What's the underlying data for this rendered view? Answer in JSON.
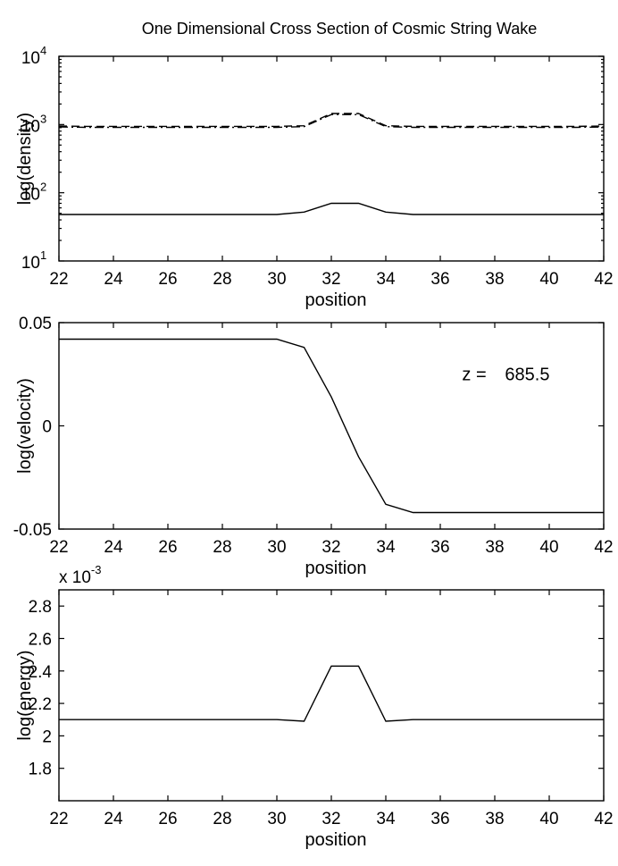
{
  "figure": {
    "title": "One Dimensional Cross Section of Cosmic String Wake"
  },
  "chart_data": [
    {
      "type": "line",
      "xlabel": "position",
      "ylabel": "log(density)",
      "yscale": "log",
      "xlim": [
        22,
        42
      ],
      "ylim": [
        10,
        10000
      ],
      "xticks": [
        "22",
        "24",
        "26",
        "28",
        "30",
        "32",
        "34",
        "36",
        "38",
        "40",
        "42"
      ],
      "yticks": [
        {
          "value": 10,
          "base": "10",
          "exp": "1"
        },
        {
          "value": 100,
          "base": "10",
          "exp": "2"
        },
        {
          "value": 1000,
          "base": "10",
          "exp": "3"
        },
        {
          "value": 10000,
          "base": "10",
          "exp": "4"
        }
      ],
      "series": [
        {
          "style": "solid",
          "color": "#000000",
          "x": [
            22,
            23,
            24,
            25,
            26,
            27,
            28,
            29,
            30,
            31,
            32,
            33,
            34,
            35,
            36,
            37,
            38,
            39,
            40,
            41,
            42
          ],
          "y": [
            48,
            48,
            48,
            48,
            48,
            48,
            48,
            48,
            48,
            52,
            70,
            70,
            52,
            48,
            48,
            48,
            48,
            48,
            48,
            48,
            48
          ]
        },
        {
          "style": "dashed",
          "color": "#000000",
          "x": [
            22,
            23,
            24,
            25,
            26,
            27,
            28,
            29,
            30,
            31,
            32,
            33,
            34,
            35,
            36,
            37,
            38,
            39,
            40,
            41,
            42
          ],
          "y": [
            950,
            940,
            940,
            940,
            940,
            940,
            940,
            940,
            940,
            960,
            1450,
            1450,
            960,
            940,
            940,
            940,
            940,
            940,
            940,
            940,
            950
          ]
        },
        {
          "style": "dashdot",
          "color": "#000000",
          "x": [
            22,
            23,
            24,
            25,
            26,
            27,
            28,
            29,
            30,
            31,
            32,
            33,
            34,
            35,
            36,
            37,
            38,
            39,
            40,
            41,
            42
          ],
          "y": [
            920,
            910,
            910,
            910,
            910,
            910,
            910,
            910,
            910,
            930,
            1400,
            1400,
            930,
            910,
            910,
            910,
            910,
            910,
            910,
            910,
            920
          ]
        }
      ]
    },
    {
      "type": "line",
      "xlabel": "position",
      "ylabel": "log(velocity)",
      "xlim": [
        22,
        42
      ],
      "ylim": [
        -0.05,
        0.05
      ],
      "xticks": [
        "22",
        "24",
        "26",
        "28",
        "30",
        "32",
        "34",
        "36",
        "38",
        "40",
        "42"
      ],
      "yticks": [
        {
          "value": -0.05,
          "label": "-0.05"
        },
        {
          "value": 0,
          "label": "0"
        },
        {
          "value": 0.05,
          "label": "0.05"
        }
      ],
      "annotation": {
        "label": "z =",
        "value": "685.5",
        "x": 36.8,
        "y": 0.022
      },
      "series": [
        {
          "style": "solid",
          "color": "#000000",
          "x": [
            22,
            23,
            24,
            25,
            26,
            27,
            28,
            29,
            30,
            31,
            32,
            33,
            34,
            35,
            36,
            37,
            38,
            39,
            40,
            41,
            42
          ],
          "y": [
            0.042,
            0.042,
            0.042,
            0.042,
            0.042,
            0.042,
            0.042,
            0.042,
            0.042,
            0.038,
            0.014,
            -0.015,
            -0.038,
            -0.042,
            -0.042,
            -0.042,
            -0.042,
            -0.042,
            -0.042,
            -0.042,
            -0.042
          ]
        }
      ]
    },
    {
      "type": "line",
      "xlabel": "position",
      "ylabel": "log(energy)",
      "xlim": [
        22,
        42
      ],
      "ylim": [
        1.6,
        2.9
      ],
      "scale_label": {
        "base": "x 10",
        "exp": "-3"
      },
      "xticks": [
        "22",
        "24",
        "26",
        "28",
        "30",
        "32",
        "34",
        "36",
        "38",
        "40",
        "42"
      ],
      "yticks": [
        {
          "value": 1.8,
          "label": "1.8"
        },
        {
          "value": 2.0,
          "label": "2"
        },
        {
          "value": 2.2,
          "label": "2.2"
        },
        {
          "value": 2.4,
          "label": "2.4"
        },
        {
          "value": 2.6,
          "label": "2.6"
        },
        {
          "value": 2.8,
          "label": "2.8"
        }
      ],
      "series": [
        {
          "style": "solid",
          "color": "#000000",
          "x": [
            22,
            23,
            24,
            25,
            26,
            27,
            28,
            29,
            30,
            31,
            32,
            33,
            34,
            35,
            36,
            37,
            38,
            39,
            40,
            41,
            42
          ],
          "y": [
            2.1,
            2.1,
            2.1,
            2.1,
            2.1,
            2.1,
            2.1,
            2.1,
            2.1,
            2.09,
            2.43,
            2.43,
            2.09,
            2.1,
            2.1,
            2.1,
            2.1,
            2.1,
            2.1,
            2.1,
            2.1
          ]
        }
      ]
    }
  ]
}
